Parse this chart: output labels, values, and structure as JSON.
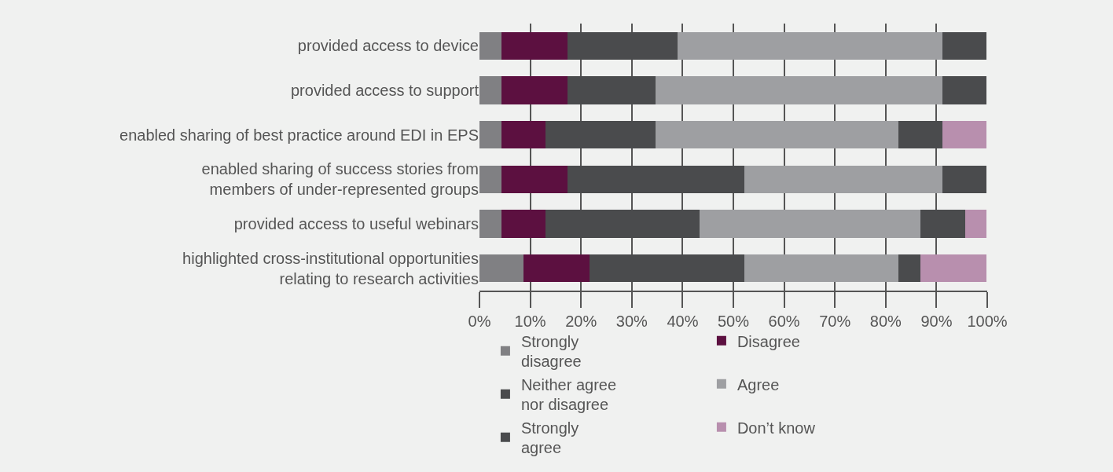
{
  "chart_data": {
    "type": "bar",
    "orientation": "horizontal",
    "stacked": true,
    "categories": [
      "provided access to device",
      "provided access to support",
      "enabled sharing of best practice around EDI in EPS",
      "enabled sharing of success stories from\nmembers of under-represented groups",
      "provided access to useful webinars",
      "highlighted cross-institutional opportunities\nrelating to research activities"
    ],
    "series": [
      {
        "name": "Strongly\ndisagree",
        "color": "#808083",
        "values": [
          4.3,
          4.3,
          4.3,
          4.3,
          4.3,
          8.7
        ]
      },
      {
        "name": "Disagree",
        "color": "#5c1040",
        "values": [
          13.0,
          13.0,
          8.7,
          13.0,
          8.7,
          13.0
        ]
      },
      {
        "name": "Neither agree\nnor disagree",
        "color": "#4a4b4d",
        "values": [
          21.7,
          17.4,
          21.7,
          34.8,
          30.4,
          30.4
        ]
      },
      {
        "name": "Agree",
        "color": "#9e9fa2",
        "values": [
          52.2,
          56.5,
          47.8,
          39.1,
          43.5,
          30.4
        ]
      },
      {
        "name": "Strongly\nagree",
        "color": "#4a4b4d",
        "values": [
          8.7,
          8.7,
          8.7,
          8.7,
          8.7,
          4.3
        ]
      },
      {
        "name": "Don’t know",
        "color": "#b88fae",
        "values": [
          0,
          0,
          8.7,
          0,
          4.3,
          13.0
        ]
      }
    ],
    "xlim": [
      0,
      100
    ],
    "xticks": [
      {
        "value": 0,
        "label": "0%"
      },
      {
        "value": 10,
        "label": "10%"
      },
      {
        "value": 20,
        "label": "20%"
      },
      {
        "value": 30,
        "label": "30%"
      },
      {
        "value": 40,
        "label": "40%"
      },
      {
        "value": 50,
        "label": "50%"
      },
      {
        "value": 60,
        "label": "60%"
      },
      {
        "value": 70,
        "label": "70%"
      },
      {
        "value": 80,
        "label": "80%"
      },
      {
        "value": 90,
        "label": "90%"
      },
      {
        "value": 100,
        "label": "100%"
      }
    ],
    "grid": "x",
    "legend": "bottom"
  }
}
